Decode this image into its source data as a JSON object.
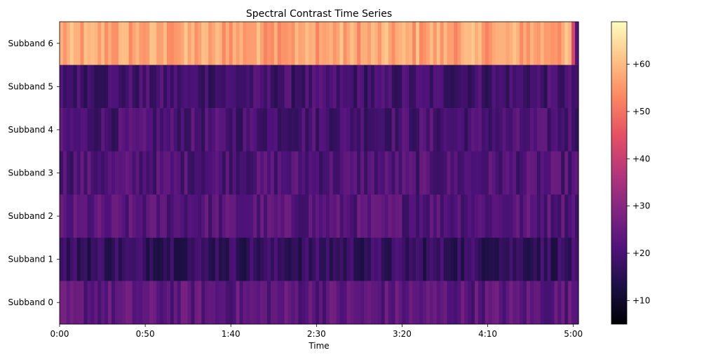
{
  "chart_data": {
    "type": "heatmap",
    "title": "Spectral Contrast Time Series",
    "xlabel": "Time",
    "ylabel": "",
    "x_range_seconds": [
      0,
      303
    ],
    "x_ticks": [
      {
        "seconds": 0,
        "label": "0:00"
      },
      {
        "seconds": 50,
        "label": "0:50"
      },
      {
        "seconds": 100,
        "label": "1:40"
      },
      {
        "seconds": 150,
        "label": "2:30"
      },
      {
        "seconds": 200,
        "label": "3:20"
      },
      {
        "seconds": 250,
        "label": "4:10"
      },
      {
        "seconds": 300,
        "label": "5:00"
      }
    ],
    "rows": [
      "Subband 6",
      "Subband 5",
      "Subband 4",
      "Subband 3",
      "Subband 2",
      "Subband 1",
      "Subband 0"
    ],
    "row_mean_values": {
      "Subband 6": 57,
      "Subband 5": 19,
      "Subband 4": 20,
      "Subband 3": 21,
      "Subband 2": 22,
      "Subband 1": 17,
      "Subband 0": 23
    },
    "colormap": "magma",
    "colorbar": {
      "vmin": 5,
      "vmax": 69,
      "ticks": [
        10,
        20,
        30,
        40,
        50,
        60
      ],
      "tick_labels": [
        "+10",
        "+20",
        "+30",
        "+40",
        "+50",
        "+60"
      ]
    },
    "grid": false,
    "legend": "none"
  }
}
